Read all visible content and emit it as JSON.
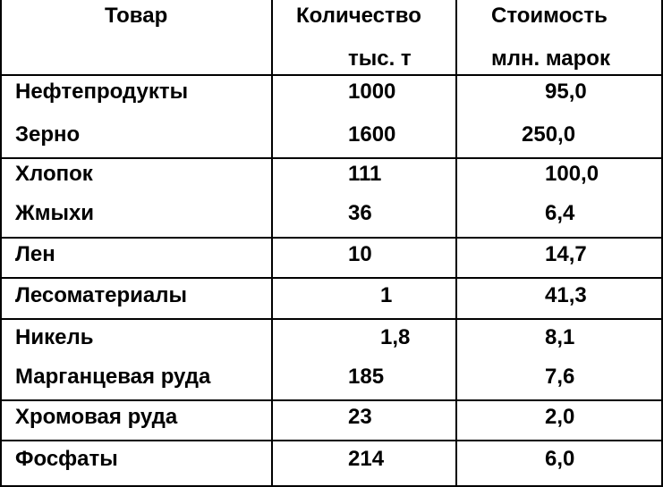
{
  "header": {
    "col1": "Товар",
    "col2_line1": "Количество",
    "col2_line2": "тыс. т",
    "col3_line1": "Стоимость",
    "col3_line2": "млн. марок"
  },
  "rows": [
    {
      "name": "Нефтепродукты",
      "qty": "1000",
      "cost": "95,0"
    },
    {
      "name": "Зерно",
      "qty": "1600",
      "cost": "250,0"
    },
    {
      "name": "Хлопок",
      "qty": "111",
      "cost": "100,0"
    },
    {
      "name": "Жмыхи",
      "qty": "36",
      "cost": "6,4"
    },
    {
      "name": "Лен",
      "qty": "10",
      "cost": "14,7"
    },
    {
      "name": "Лесоматериалы",
      "qty": "1",
      "cost": "41,3"
    },
    {
      "name": "Никель",
      "qty": "1,8",
      "cost": "8,1"
    },
    {
      "name": "Марганцевая руда",
      "qty": "185",
      "cost": "7,6"
    },
    {
      "name": "Хромовая руда",
      "qty": "23",
      "cost": "2,0"
    },
    {
      "name": "Фосфаты",
      "qty": "214",
      "cost": "6,0"
    }
  ]
}
